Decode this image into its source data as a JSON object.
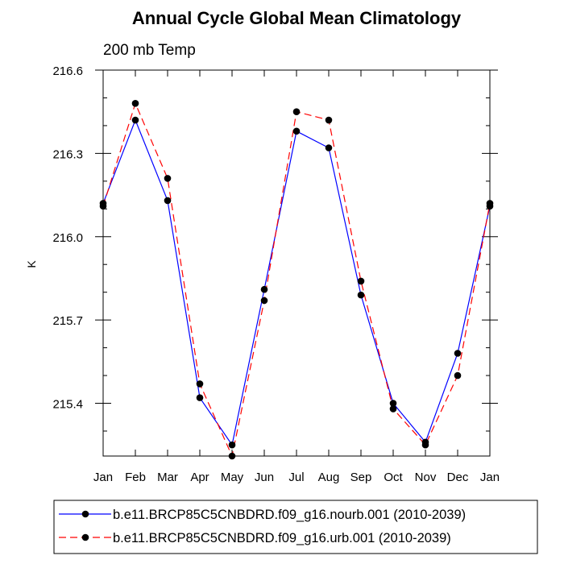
{
  "chart_data": {
    "type": "line",
    "title": "Annual Cycle Global Mean Climatology",
    "subtitle": "200 mb Temp",
    "xlabel": "",
    "ylabel": "K",
    "categories": [
      "Jan",
      "Feb",
      "Mar",
      "Apr",
      "May",
      "Jun",
      "Jul",
      "Aug",
      "Sep",
      "Oct",
      "Nov",
      "Dec",
      "Jan"
    ],
    "ylim": [
      215.21,
      216.6
    ],
    "yticks": [
      215.4,
      215.7,
      216.0,
      216.3,
      216.6
    ],
    "ytick_labels": [
      "215.4",
      "215.7",
      "216.0",
      "216.3",
      "216.6"
    ],
    "grid": false,
    "legend_position": "bottom",
    "series": [
      {
        "name": "b.e11.BRCP85C5CNBDRD.f09_g16.nourb.001 (2010-2039)",
        "color": "#0000ff",
        "dash": "solid",
        "values": [
          216.12,
          216.42,
          216.13,
          215.42,
          215.25,
          215.81,
          216.38,
          216.32,
          215.79,
          215.4,
          215.26,
          215.58,
          216.11
        ]
      },
      {
        "name": "b.e11.BRCP85C5CNBDRD.f09_g16.urb.001 (2010-2039)",
        "color": "#ff0000",
        "dash": "dashed",
        "values": [
          216.11,
          216.48,
          216.21,
          215.47,
          215.21,
          215.77,
          216.45,
          216.42,
          215.84,
          215.38,
          215.25,
          215.5,
          216.12
        ]
      }
    ]
  }
}
